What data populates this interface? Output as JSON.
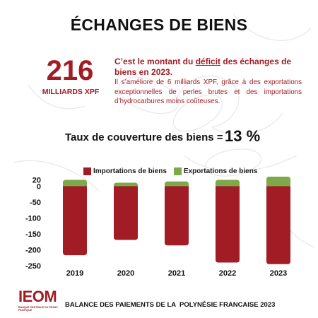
{
  "title": "ÉCHANGES DE BIENS",
  "highlight": {
    "number": "216",
    "unit": "MILLIARDS XPF"
  },
  "headline": {
    "before": "C’est le montant du ",
    "emphasis": "déficit",
    "after": " des échanges de biens en 2023."
  },
  "description": "Il s’améliore de 6 milliards XPF, grâce à des exportations exceptionnelles de perles brutes et des importations d’hydrocarbures moins coûteuses.",
  "coverage": {
    "label": "Taux de couverture des biens =",
    "value": "13 %"
  },
  "colors": {
    "imports": "#a11c24",
    "exports": "#7ea84a",
    "accent": "#a11c24"
  },
  "chart_data": {
    "type": "bar",
    "stacked": true,
    "categories": [
      "2019",
      "2020",
      "2021",
      "2022",
      "2023"
    ],
    "series": [
      {
        "name": "Importations de biens",
        "color": "#a11c24",
        "values": [
          -217,
          -169,
          -186,
          -240,
          -245
        ]
      },
      {
        "name": "Exportations de biens",
        "color": "#7ea84a",
        "values": [
          20,
          11,
          15,
          20,
          30
        ]
      }
    ],
    "ylim": [
      -250,
      30
    ],
    "yticks": [
      0,
      -50,
      -100,
      -150,
      -200,
      -250
    ],
    "ytick_labels": [
      "0",
      "-50",
      "-100",
      "-150",
      "-200",
      "-250"
    ],
    "extra_tick_labels": [
      {
        "value": 20,
        "label": "20"
      }
    ],
    "grid": false,
    "legend": "top"
  },
  "footer": {
    "logo_text": "IEOM",
    "logo_subtitle": "BANQUE CENTRALE DU FRANC PACIFIQUE",
    "text": "BALANCE DES PAIEMENTS DE LA  POLYNÉSIE FRANCAISE 2023"
  }
}
